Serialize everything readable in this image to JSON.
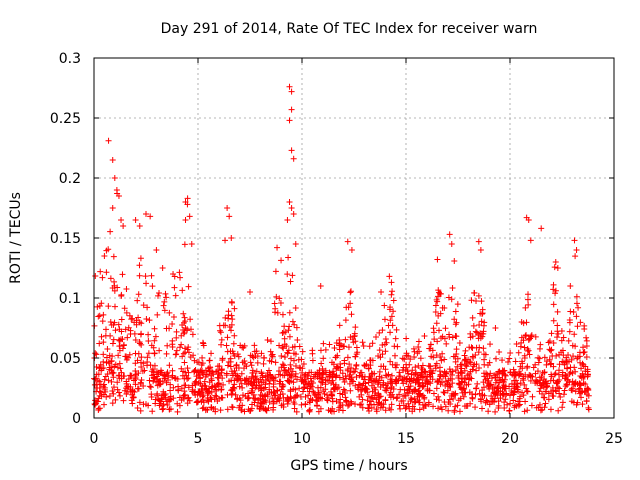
{
  "chart_data": {
    "type": "scatter",
    "title": "Day 291 of 2014, Rate Of TEC Index for receiver warn",
    "xlabel": "GPS time / hours",
    "ylabel": "ROTI / TECUs",
    "xlim": [
      0,
      25
    ],
    "ylim": [
      0,
      0.3
    ],
    "xticks": [
      0,
      5,
      10,
      15,
      20,
      25
    ],
    "xtick_labels": [
      "0",
      "5",
      "10",
      "15",
      "20",
      "25"
    ],
    "yticks": [
      0,
      0.05,
      0.1,
      0.15,
      0.2,
      0.25,
      0.3
    ],
    "ytick_labels": [
      "0",
      "0.05",
      "0.1",
      "0.15",
      "0.2",
      "0.25",
      "0.3"
    ],
    "grid": true,
    "marker": "plus",
    "color": "#ff0000",
    "series": [
      {
        "name": "ROTI",
        "points": [
          [
            0.7,
            0.231
          ],
          [
            1.0,
            0.2
          ],
          [
            1.1,
            0.19
          ],
          [
            1.2,
            0.185
          ],
          [
            0.9,
            0.175
          ],
          [
            1.3,
            0.165
          ],
          [
            2.0,
            0.165
          ],
          [
            2.5,
            0.17
          ],
          [
            2.7,
            0.168
          ],
          [
            4.4,
            0.18
          ],
          [
            4.5,
            0.183
          ],
          [
            4.4,
            0.165
          ],
          [
            4.6,
            0.168
          ],
          [
            6.4,
            0.175
          ],
          [
            6.5,
            0.168
          ],
          [
            6.3,
            0.148
          ],
          [
            6.6,
            0.15
          ],
          [
            9.4,
            0.276
          ],
          [
            9.5,
            0.272
          ],
          [
            9.5,
            0.257
          ],
          [
            9.4,
            0.248
          ],
          [
            9.5,
            0.223
          ],
          [
            9.6,
            0.216
          ],
          [
            9.4,
            0.18
          ],
          [
            9.5,
            0.175
          ],
          [
            9.6,
            0.17
          ],
          [
            9.3,
            0.165
          ],
          [
            9.7,
            0.145
          ],
          [
            8.8,
            0.142
          ],
          [
            12.2,
            0.147
          ],
          [
            12.4,
            0.14
          ],
          [
            14.2,
            0.118
          ],
          [
            14.3,
            0.113
          ],
          [
            17.1,
            0.153
          ],
          [
            17.2,
            0.145
          ],
          [
            18.5,
            0.147
          ],
          [
            18.6,
            0.14
          ],
          [
            20.8,
            0.167
          ],
          [
            20.9,
            0.165
          ],
          [
            21.5,
            0.158
          ],
          [
            21.0,
            0.148
          ],
          [
            22.2,
            0.13
          ],
          [
            22.3,
            0.125
          ],
          [
            23.1,
            0.148
          ],
          [
            23.2,
            0.14
          ],
          [
            4.7,
            0.145
          ],
          [
            0.5,
            0.135
          ],
          [
            0.3,
            0.122
          ],
          [
            3.0,
            0.14
          ],
          [
            3.3,
            0.125
          ],
          [
            7.5,
            0.105
          ],
          [
            10.9,
            0.11
          ],
          [
            13.8,
            0.105
          ],
          [
            16.5,
            0.097
          ],
          [
            19.3,
            0.075
          ],
          [
            22.9,
            0.11
          ],
          [
            0.9,
            0.215
          ],
          [
            1.4,
            0.16
          ],
          [
            2.2,
            0.16
          ],
          [
            3.8,
            0.12
          ]
        ]
      }
    ]
  }
}
